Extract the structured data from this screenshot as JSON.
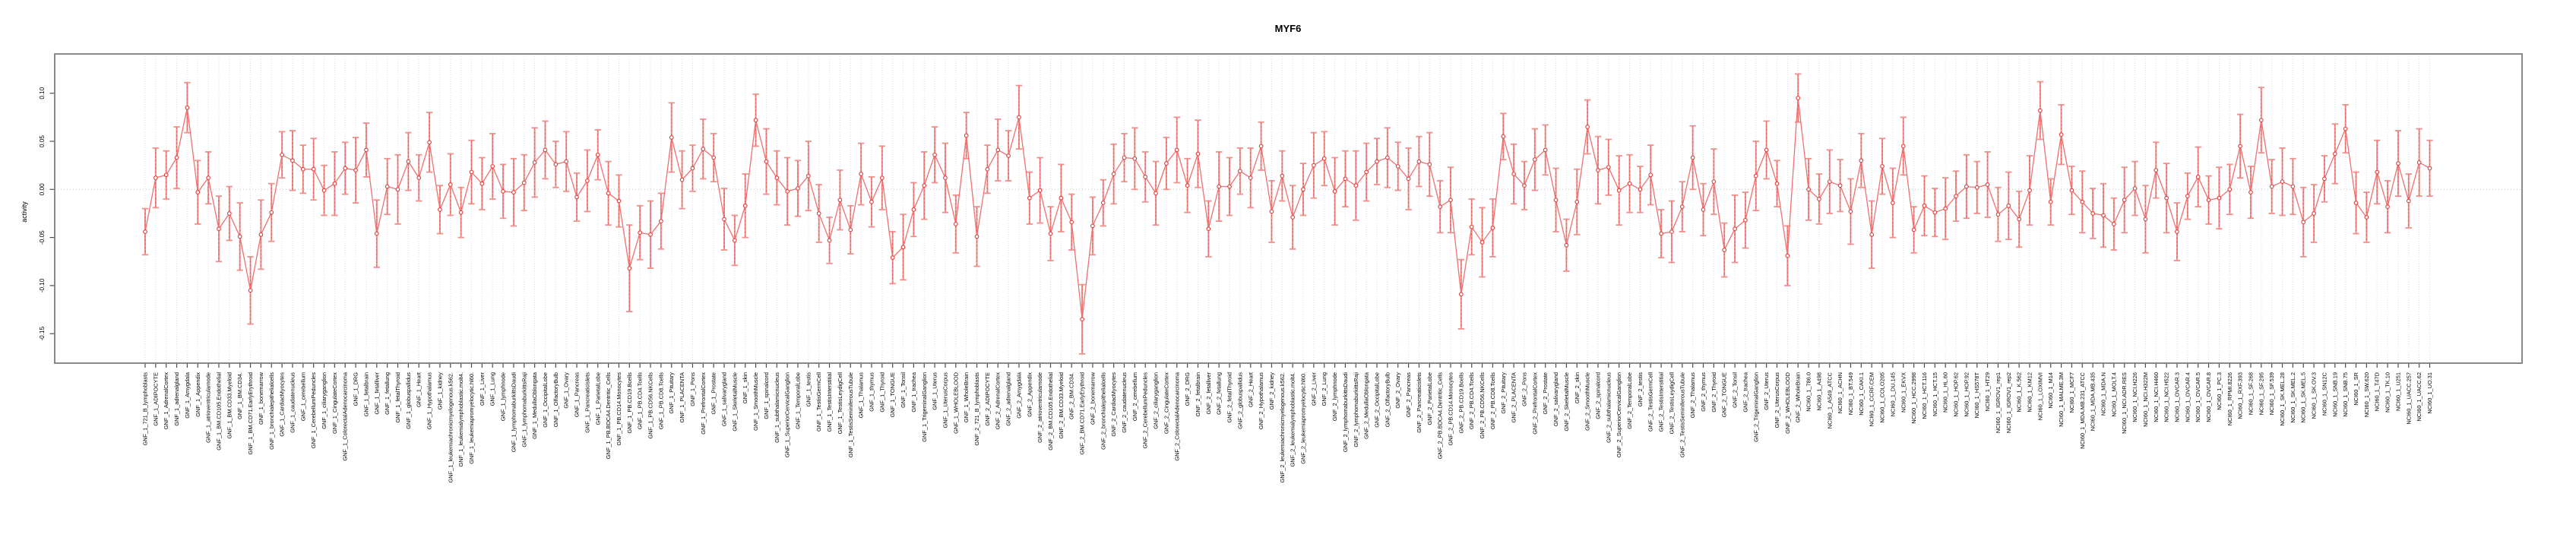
{
  "title": "MYF6",
  "y_axis": {
    "label": "activity",
    "tick_labels": [
      "0.10",
      "0.05",
      "0.00",
      "-0.05",
      "-0.10",
      "-0.15"
    ]
  },
  "colors": {
    "point_stroke": "#dd3c3c",
    "whisker": "#f0908c",
    "stem_dashed": "#e85c58",
    "connector": "#ef7070",
    "gridline": "#dcdcdc",
    "zero_line": "#c0c0c0",
    "box": "#7d7d7d",
    "text": "#000000"
  },
  "chart_data": {
    "type": "scatter",
    "subtype": "points-with-error-bars-connected",
    "title": "MYF6",
    "xlabel": "",
    "ylabel": "activity",
    "ylim": [
      -0.18,
      0.14
    ],
    "yticks": [
      0.1,
      0.05,
      0.0,
      -0.05,
      -0.1,
      -0.15
    ],
    "grid": "vertical dotted line per category; dotted horizontal line at zero",
    "legend": "none",
    "categories": [
      "GNF_1_721_B_lymphoblasts",
      "GNF_1_ADIPOCYTE",
      "GNF_1_AdrenalCortex",
      "GNF_1_adrenalgland",
      "GNF_1_Amygdala",
      "GNF_1_Appendix",
      "GNF_1_atrioventricularnode",
      "GNF_1_BM.CD105.Endothelial",
      "GNF_1_BM.CD33.Myeloid",
      "GNF_1_BM.CD34.",
      "GNF_1_BM.CD71.EarlyErythroid",
      "GNF_1_bonemarrow",
      "GNF_1_bronchialepithelialcells",
      "GNF_1_CardiacMyocytes",
      "GNF_1_caudatenucleus",
      "GNF_1_cerebellum",
      "GNF_1_CerebellumPeduncles",
      "GNF_1_ciliaryganglion",
      "GNF_1_CingulateCortex",
      "GNF_1_ColorectalAdenocarcinoma",
      "GNF_1_DRG",
      "GNF_1_fetalbrain",
      "GNF_1_fetalliver",
      "GNF_1_fetallung",
      "GNF_1_fetalThyroid",
      "GNF_1_globuspallidus",
      "GNF_1_Heart",
      "GNF_1_Hypothalamus",
      "GNF_1_kidney",
      "GNF_1_leukemiachronicmyelogenous.k562.",
      "GNF_1_leukemialymphoblastic.molt4.",
      "GNF_1_leukemiapromyelocytic.hl60.",
      "GNF_1_Liver",
      "GNF_1_Lung",
      "GNF_1_lymphnode",
      "GNF_1_lymphomaburkittsDaudi",
      "GNF_1_lymphomaburkittsRaji",
      "GNF_1_MedullaOblongata",
      "GNF_1_OccipitalLobe",
      "GNF_1_OlfactoryBulb",
      "GNF_1_Ovary",
      "GNF_1_Pancreas",
      "GNF_1_Pancreaticislets",
      "GNF_1_ParietalLobe",
      "GNF_1_PB.BDCA4.Dentritic_Cells",
      "GNF_1_PB.CD14.Monocytes",
      "GNF_1_PB.CD19.Bcells",
      "GNF_1_PB.CD4.Tcells",
      "GNF_1_PB.CD56.NKCells",
      "GNF_1_PB.CD8.Tcells",
      "GNF_1_Pituitary",
      "GNF_1_PLACENTA",
      "GNF_1_Pons",
      "GNF_1_PrefrontalCortex",
      "GNF_1_Prostate",
      "GNF_1_salivarygland",
      "GNF_1_SkeletalMuscle",
      "GNF_1_skin",
      "GNF_1_SmoothMuscle",
      "GNF_1_spinalcord",
      "GNF_1_subthalamicnucleus",
      "GNF_1_SuperiorCervicalGanglion",
      "GNF_1_TemporalLobe",
      "GNF_1_testis",
      "GNF_1_TestisGermCell",
      "GNF_1_TestisInterstitial",
      "GNF_1_TestisLeydigCell",
      "GNF_1_TestisSeminiferousTubule",
      "GNF_1_Thalamus",
      "GNF_1_thymus",
      "GNF_1_Thyroid",
      "GNF_1_TONGUE",
      "GNF_1_Tonsil",
      "GNF_1_trachea",
      "GNF_1_TrigeminalGanglion",
      "GNF_1_Uterus",
      "GNF_1_UterusCorpus",
      "GNF_1_WHOLEBLOOD",
      "GNF_1_WholeBrain",
      "GNF_2_721_B_lymphoblasts",
      "GNF_2_ADIPOCYTE",
      "GNF_2_AdrenalCortex",
      "GNF_2_adrenalgland",
      "GNF_2_Amygdala",
      "GNF_2_Appendix",
      "GNF_2_atrioventricularnode",
      "GNF_2_BM.CD105.Endothelial",
      "GNF_2_BM.CD33.Myeloid",
      "GNF_2_BM.CD34.",
      "GNF_2_BM.CD71.EarlyErythroid",
      "GNF_2_bonemarrow",
      "GNF_2_bronchialepithelialcells",
      "GNF_2_CardiacMyocytes",
      "GNF_2_caudatenucleus",
      "GNF_2_cerebellum",
      "GNF_2_CerebellumPeduncles",
      "GNF_2_ciliaryganglion",
      "GNF_2_CingulateCortex",
      "GNF_2_ColorectalAdenocarcinoma",
      "GNF_2_DRG",
      "GNF_2_fetalbrain",
      "GNF_2_fetalliver",
      "GNF_2_fetallung",
      "GNF_2_fetalThyroid",
      "GNF_2_globuspallidus",
      "GNF_2_Heart",
      "GNF_2_Hypothalamus",
      "GNF_2_kidney",
      "GNF_2_leukemiachronicmyelogenous.k562.",
      "GNF_2_leukemialymphoblastic.molt4.",
      "GNF_2_leukemiapromyelocytic.hl60.",
      "GNF_2_Liver",
      "GNF_2_Lung",
      "GNF_2_lymphnode",
      "GNF_2_lymphomaburkittsDaudi",
      "GNF_2_lymphomaburkittsRaji",
      "GNF_2_MedullaOblongata",
      "GNF_2_OccipitalLobe",
      "GNF_2_OlfactoryBulb",
      "GNF_2_Ovary",
      "GNF_2_Pancreas",
      "GNF_2_Pancreaticislets",
      "GNF_2_ParietalLobe",
      "GNF_2_PB.BDCA4.Dentritic_Cells",
      "GNF_2_PB.CD14.Monocytes",
      "GNF_2_PB.CD19.Bcells",
      "GNF_2_PB.CD4.Tcells",
      "GNF_2_PB.CD56.NKCells",
      "GNF_2_PB.CD8.Tcells",
      "GNF_2_Pituitary",
      "GNF_2_PLACENTA",
      "GNF_2_Pons",
      "GNF_2_PrefrontalCortex",
      "GNF_2_Prostate",
      "GNF_2_salivarygland",
      "GNF_2_SkeletalMuscle",
      "GNF_2_skin",
      "GNF_2_SmoothMuscle",
      "GNF_2_spinalcord",
      "GNF_2_subthalamicnucleus",
      "GNF_2_SuperiorCervicalGanglion",
      "GNF_2_TemporalLobe",
      "GNF_2_testis",
      "GNF_2_TestisGermCell",
      "GNF_2_TestisInterstitial",
      "GNF_2_TestisLeydigCell",
      "GNF_2_TestisSeminiferousTubule",
      "GNF_2_Thalamus",
      "GNF_2_thymus",
      "GNF_2_Thyroid",
      "GNF_2_TONGUE",
      "GNF_2_Tonsil",
      "GNF_2_trachea",
      "GNF_2_TrigeminalGanglion",
      "GNF_2_Uterus",
      "GNF_2_UterusCorpus",
      "GNF_2_WHOLEBLOOD",
      "GNF_2_WholeBrain",
      "NCI60_1_786.0",
      "NCI60_1_A498",
      "NCI60_1_A549_ATCC",
      "NCI60_1_ACHN",
      "NCI60_1_BT.549",
      "NCI60_1_CAKI.1",
      "NCI60_1_CCRF.CEM",
      "NCI60_1_COLO205",
      "NCI60_1_DU.145",
      "NCI60_1_EKVX",
      "NCI60_1_HCC.2998",
      "NCI60_1_HCT.116",
      "NCI60_1_HCT.15",
      "NCI60_1_HL.60",
      "NCI60_1_HOP.62",
      "NCI60_1_HOP.92",
      "NCI60_1_HS578T",
      "NCI60_1_HT29",
      "NCI60_1_IGROV1_rep1",
      "NCI60_1_IGROV1_rep2",
      "NCI60_1_K.562",
      "NCI60_1_KM12",
      "NCI60_1_LOXIMVI",
      "NCI60_1_M14",
      "NCI60_1_MALME.3M",
      "NCI60_1_MCF7",
      "NCI60_1_MDA.MB.231_ATCC",
      "NCI60_1_MDA.MB.435",
      "NCI60_1_MDA.N",
      "NCI60_1_MOLT.4",
      "NCI60_1_NCI.ADR.RES",
      "NCI60_1_NCI.H226",
      "NCI60_1_NCI.H322M",
      "NCI60_1_NCI.H460",
      "NCI60_1_NCI.H522",
      "NCI60_1_OVCAR.3",
      "NCI60_1_OVCAR.4",
      "NCI60_1_OVCAR.5",
      "NCI60_1_OVCAR.8",
      "NCI60_1_PC.3",
      "NCI60_1_RPMI.8226",
      "NCI60_1_RXF.393",
      "NCI60_1_SF.268",
      "NCI60_1_SF.295",
      "NCI60_1_SF.539",
      "NCI60_1_SK.MEL.28",
      "NCI60_1_SK.MEL.2",
      "NCI60_1_SK.MEL.5",
      "NCI60_1_SK.OV.3",
      "NCI60_1_SN12C",
      "NCI60_1_SNB.19",
      "NCI60_1_SNB.75",
      "NCI60_1_SR",
      "NCI60_1_SW.620",
      "NCI60_1_T47D",
      "NCI60_1_TK.10",
      "NCI60_1_U251",
      "NCI60_1_UACC.257",
      "NCI60_1_UACC.62",
      "NCI60_1_UO.31"
    ],
    "values": [
      -0.044,
      0.012,
      0.015,
      0.033,
      0.085,
      -0.003,
      0.012,
      -0.041,
      -0.025,
      -0.049,
      -0.105,
      -0.047,
      -0.024,
      0.036,
      0.03,
      0.021,
      0.021,
      -0.001,
      0.006,
      0.022,
      0.02,
      0.041,
      -0.046,
      0.003,
      0.0,
      0.029,
      0.012,
      0.049,
      -0.021,
      0.005,
      -0.024,
      0.018,
      0.006,
      0.024,
      -0.002,
      -0.003,
      0.007,
      0.028,
      0.041,
      0.026,
      0.029,
      -0.008,
      0.009,
      0.036,
      -0.004,
      -0.012,
      -0.082,
      -0.045,
      -0.047,
      -0.033,
      0.054,
      0.01,
      0.022,
      0.042,
      0.033,
      -0.031,
      -0.053,
      -0.017,
      0.072,
      0.029,
      0.012,
      -0.002,
      0.001,
      0.014,
      -0.025,
      -0.053,
      -0.011,
      -0.042,
      0.016,
      -0.013,
      0.012,
      -0.071,
      -0.06,
      -0.021,
      0.004,
      0.036,
      0.012,
      -0.036,
      0.056,
      -0.049,
      0.021,
      0.041,
      0.035,
      0.075,
      -0.009,
      -0.001,
      -0.046,
      -0.009,
      -0.034,
      -0.135,
      -0.038,
      -0.014,
      0.016,
      0.033,
      0.032,
      0.013,
      -0.004,
      0.027,
      0.041,
      0.004,
      0.037,
      -0.041,
      0.003,
      0.003,
      0.019,
      0.012,
      0.045,
      -0.023,
      0.014,
      -0.029,
      0.0,
      0.025,
      0.032,
      -0.002,
      0.011,
      0.004,
      0.018,
      0.029,
      0.033,
      0.024,
      0.011,
      0.029,
      0.026,
      -0.018,
      -0.011,
      -0.109,
      -0.039,
      -0.055,
      -0.04,
      0.055,
      0.016,
      0.004,
      0.031,
      0.041,
      -0.011,
      -0.058,
      -0.013,
      0.065,
      0.02,
      0.023,
      -0.001,
      0.006,
      0.0,
      0.015,
      -0.046,
      -0.044,
      -0.018,
      0.033,
      -0.021,
      0.008,
      -0.063,
      -0.041,
      -0.032,
      0.014,
      0.041,
      0.006,
      -0.069,
      0.095,
      0.0,
      -0.01,
      0.008,
      0.004,
      -0.023,
      0.03,
      -0.047,
      0.024,
      -0.014,
      0.045,
      -0.042,
      -0.017,
      -0.024,
      -0.02,
      -0.007,
      0.003,
      0.002,
      0.005,
      -0.026,
      -0.017,
      -0.031,
      -0.001,
      0.082,
      -0.013,
      0.057,
      -0.001,
      -0.013,
      -0.025,
      -0.027,
      -0.036,
      -0.011,
      0.001,
      -0.031,
      0.02,
      -0.009,
      -0.044,
      -0.007,
      0.013,
      -0.011,
      -0.009,
      0.0,
      0.045,
      -0.003,
      0.072,
      0.003,
      0.008,
      0.003,
      -0.034,
      -0.025,
      0.011,
      0.037,
      0.063,
      -0.014,
      -0.029,
      0.018,
      -0.018,
      0.027,
      -0.012,
      0.028,
      0.022
    ],
    "errors": [
      0.024,
      0.031,
      0.025,
      0.032,
      0.026,
      0.033,
      0.027,
      0.034,
      0.028,
      0.035,
      0.035,
      0.036,
      0.03,
      0.024,
      0.031,
      0.025,
      0.032,
      0.026,
      0.033,
      0.027,
      0.034,
      0.028,
      0.035,
      0.029,
      0.036,
      0.03,
      0.024,
      0.031,
      0.025,
      0.032,
      0.026,
      0.033,
      0.027,
      0.034,
      0.028,
      0.035,
      0.029,
      0.036,
      0.03,
      0.024,
      0.031,
      0.025,
      0.032,
      0.026,
      0.033,
      0.027,
      0.045,
      0.028,
      0.035,
      0.029,
      0.036,
      0.03,
      0.024,
      0.031,
      0.025,
      0.032,
      0.026,
      0.033,
      0.027,
      0.034,
      0.028,
      0.035,
      0.029,
      0.036,
      0.03,
      0.024,
      0.031,
      0.025,
      0.032,
      0.026,
      0.033,
      0.027,
      0.034,
      0.028,
      0.035,
      0.029,
      0.036,
      0.03,
      0.024,
      0.031,
      0.025,
      0.032,
      0.026,
      0.033,
      0.027,
      0.034,
      0.028,
      0.035,
      0.029,
      0.036,
      0.03,
      0.024,
      0.031,
      0.025,
      0.032,
      0.026,
      0.033,
      0.027,
      0.034,
      0.028,
      0.035,
      0.029,
      0.036,
      0.03,
      0.024,
      0.031,
      0.025,
      0.032,
      0.026,
      0.033,
      0.027,
      0.034,
      0.028,
      0.035,
      0.029,
      0.036,
      0.03,
      0.024,
      0.031,
      0.025,
      0.032,
      0.026,
      0.033,
      0.027,
      0.034,
      0.036,
      0.029,
      0.036,
      0.03,
      0.024,
      0.031,
      0.025,
      0.032,
      0.026,
      0.033,
      0.027,
      0.034,
      0.028,
      0.035,
      0.029,
      0.036,
      0.03,
      0.024,
      0.031,
      0.025,
      0.032,
      0.026,
      0.033,
      0.027,
      0.034,
      0.028,
      0.035,
      0.029,
      0.036,
      0.03,
      0.024,
      0.031,
      0.025,
      0.032,
      0.026,
      0.033,
      0.027,
      0.034,
      0.028,
      0.035,
      0.029,
      0.036,
      0.03,
      0.024,
      0.031,
      0.025,
      0.032,
      0.026,
      0.033,
      0.027,
      0.034,
      0.028,
      0.035,
      0.029,
      0.036,
      0.03,
      0.024,
      0.031,
      0.025,
      0.032,
      0.026,
      0.033,
      0.027,
      0.034,
      0.028,
      0.035,
      0.029,
      0.036,
      0.03,
      0.024,
      0.031,
      0.025,
      0.032,
      0.026,
      0.033,
      0.027,
      0.034,
      0.028,
      0.035,
      0.029,
      0.036,
      0.03,
      0.024,
      0.031,
      0.025,
      0.032,
      0.026,
      0.033,
      0.027,
      0.034,
      0.028,
      0.035,
      0.029
    ]
  }
}
